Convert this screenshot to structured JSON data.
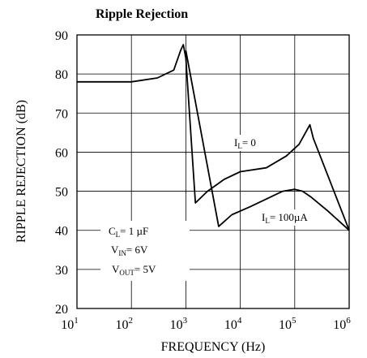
{
  "chart_data": {
    "type": "line",
    "title": "Ripple Rejection",
    "xlabel": "FREQUENCY (Hz)",
    "ylabel": "RIPPLE REJECTION (dB)",
    "x_scale": "log",
    "xlim": [
      10,
      1000000
    ],
    "ylim": [
      20,
      90
    ],
    "grid": true,
    "x_ticks": [
      {
        "base": "10",
        "exp": "1"
      },
      {
        "base": "10",
        "exp": "2"
      },
      {
        "base": "10",
        "exp": "3"
      },
      {
        "base": "10",
        "exp": "4"
      },
      {
        "base": "10",
        "exp": "5"
      },
      {
        "base": "10",
        "exp": "6"
      }
    ],
    "y_ticks": [
      "20",
      "30",
      "40",
      "50",
      "60",
      "70",
      "80",
      "90"
    ],
    "y_tick_values": [
      20,
      30,
      40,
      50,
      60,
      70,
      80,
      90
    ],
    "series": [
      {
        "name": "IL = 0",
        "label": {
          "main": "I",
          "sub": "L",
          "rest": "= 0"
        },
        "x": [
          10,
          100,
          300,
          600,
          800,
          900,
          1000,
          1500,
          2500,
          5000,
          10000,
          30000,
          70000,
          120000,
          190000,
          220000,
          1000000
        ],
        "y": [
          78,
          78,
          79,
          81,
          86,
          87.5,
          84,
          47,
          50,
          53,
          55,
          56,
          59,
          62,
          67,
          63.5,
          40
        ]
      },
      {
        "name": "IL = 100µA",
        "label": {
          "main": "I",
          "sub": "L",
          "rest": "= 100µA"
        },
        "x": [
          1000,
          4000,
          7000,
          15000,
          30000,
          60000,
          100000,
          140000,
          200000,
          400000,
          1000000
        ],
        "y": [
          86,
          41,
          44,
          46,
          48,
          50,
          50.5,
          50,
          48.5,
          45,
          40
        ]
      }
    ],
    "annotation": {
      "lines": [
        {
          "main": "C",
          "sub": "L",
          "rest": "= 1 µF"
        },
        {
          "main": "V",
          "sub": "IN",
          "rest": "= 6V"
        },
        {
          "main": "V",
          "sub": "OUT",
          "rest": "= 5V"
        }
      ]
    }
  }
}
